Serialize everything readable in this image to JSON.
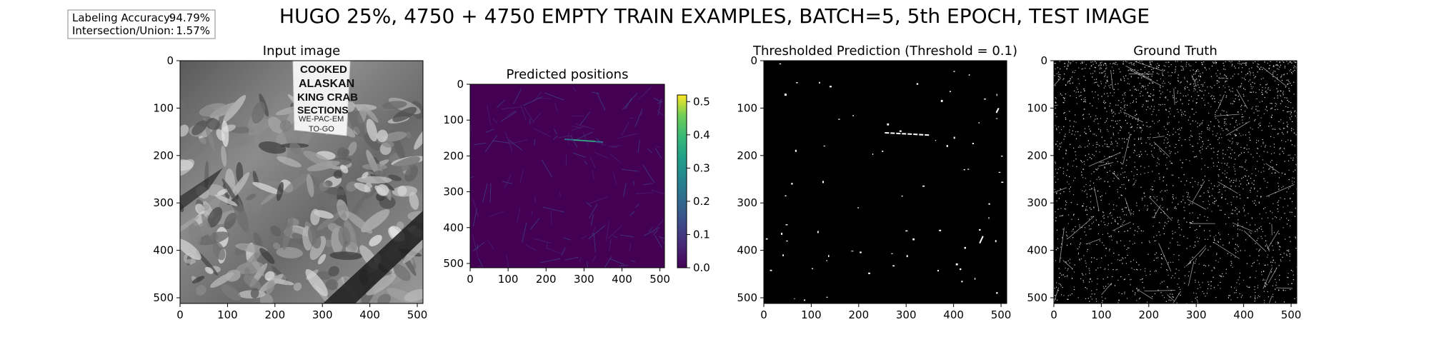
{
  "figure": {
    "title": "HUGO 25%, 4750 + 4750 EMPTY TRAIN EXAMPLES, BATCH=5, 5th EPOCH, TEST IMAGE",
    "stats": {
      "accuracy_label": "Labeling Accuracy:",
      "accuracy_value": "94.79%",
      "iou_label": "Intersection/Union:",
      "iou_value": "1.57%"
    }
  },
  "chart_data": [
    {
      "type": "heatmap",
      "title": "Input image",
      "colormap": "gray",
      "xlim": [
        0,
        512
      ],
      "ylim": [
        512,
        0
      ],
      "xticks": [
        0,
        100,
        200,
        300,
        400,
        500
      ],
      "yticks": [
        0,
        100,
        200,
        300,
        400,
        500
      ],
      "image_text": [
        "COOKED",
        "ALASKAN",
        "KING CRAB",
        "SECTIONS",
        "WE-PAC-EM",
        "TO-GO"
      ]
    },
    {
      "type": "heatmap",
      "title": "Predicted positions",
      "colormap": "viridis",
      "xlim": [
        0,
        512
      ],
      "ylim": [
        512,
        0
      ],
      "xticks": [
        0,
        100,
        200,
        300,
        400,
        500
      ],
      "yticks": [
        0,
        100,
        200,
        300,
        400,
        500
      ],
      "colorbar": {
        "min": 0.0,
        "max": 0.52,
        "ticks": [
          "0.0",
          "0.1",
          "0.2",
          "0.3",
          "0.4",
          "0.5"
        ]
      }
    },
    {
      "type": "heatmap",
      "title": "Thresholded Prediction (Threshold = 0.1)",
      "colormap": "gray",
      "xlim": [
        0,
        512
      ],
      "ylim": [
        512,
        0
      ],
      "xticks": [
        0,
        100,
        200,
        300,
        400,
        500
      ],
      "yticks": [
        0,
        100,
        200,
        300,
        400,
        500
      ]
    },
    {
      "type": "heatmap",
      "title": "Ground Truth",
      "colormap": "gray",
      "xlim": [
        0,
        512
      ],
      "ylim": [
        512,
        0
      ],
      "xticks": [
        0,
        100,
        200,
        300,
        400,
        500
      ],
      "yticks": [
        0,
        100,
        200,
        300,
        400,
        500
      ]
    }
  ]
}
